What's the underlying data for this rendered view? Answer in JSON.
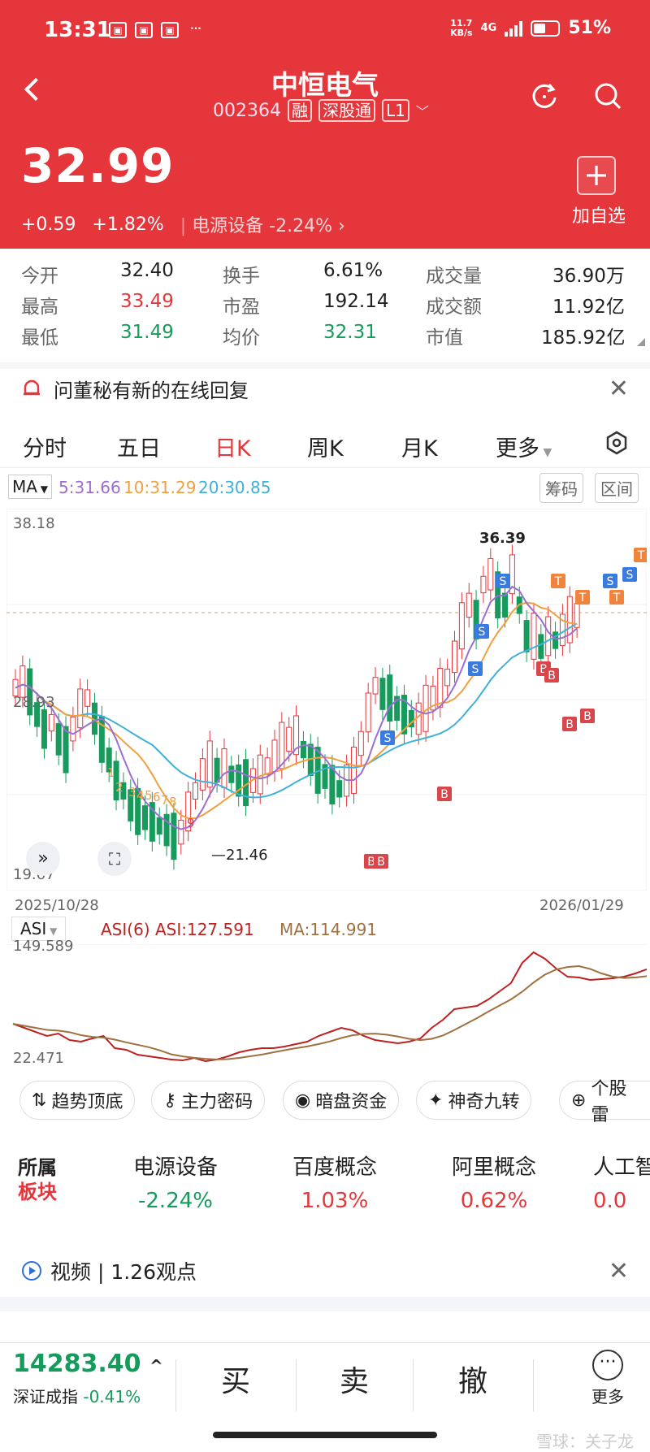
{
  "status": {
    "time": "13:31",
    "net_speed": "11.7",
    "net_unit": "KB/s",
    "net_type": "4G",
    "battery": "51%"
  },
  "header": {
    "title": "中恒电气",
    "code": "002364",
    "tags": [
      "融",
      "深股通",
      "L1"
    ],
    "price": "32.99",
    "change": "+0.59",
    "change_pct": "+1.82%",
    "sector": "电源设备",
    "sector_pct": "-2.24%",
    "add_label": "加自选"
  },
  "quote": {
    "open_label": "今开",
    "open": "32.40",
    "turnover_label": "换手",
    "turnover": "6.61%",
    "volume_label": "成交量",
    "volume": "36.90万",
    "high_label": "最高",
    "high": "33.49",
    "pe_label": "市盈",
    "pe": "192.14",
    "amount_label": "成交额",
    "amount": "11.92亿",
    "low_label": "最低",
    "low": "31.49",
    "avg_label": "均价",
    "avg": "32.31",
    "mcap_label": "市值",
    "mcap": "185.92亿"
  },
  "notice": {
    "text": "问董秘有新的在线回复"
  },
  "tabs": [
    "分时",
    "五日",
    "日K",
    "周K",
    "月K",
    "更多"
  ],
  "chart": {
    "ma_label": "MA",
    "ma5": "5:31.66",
    "ma10": "10:31.29",
    "ma20": "20:30.85",
    "btn1": "筹码",
    "btn2": "区间",
    "y_top": "38.18",
    "y_mid": "28.93",
    "y_bot": "19.67",
    "date_start": "2025/10/28",
    "date_end": "2026/01/29",
    "high_mark": "36.39",
    "low_mark": "21.46",
    "nine_labels": [
      "1",
      "2",
      "3",
      "4",
      "5",
      "6",
      "7",
      "8",
      "9"
    ],
    "signal_s": "S",
    "signal_b": "B",
    "signal_t": "T"
  },
  "asi": {
    "label": "ASI",
    "params": "ASI(6) ASI:127.591",
    "ma": "MA:114.991",
    "y_top": "149.589",
    "y_bot": "22.471"
  },
  "chips": [
    "趋势顶底",
    "主力密码",
    "暗盘资金",
    "神奇九转",
    "个股雷"
  ],
  "sector": {
    "title1": "所属",
    "title2": "板块",
    "items": [
      {
        "name": "电源设备",
        "pct": "-2.24%"
      },
      {
        "name": "百度概念",
        "pct": "1.03%"
      },
      {
        "name": "阿里概念",
        "pct": "0.62%"
      },
      {
        "name": "人工智",
        "pct": "0.0"
      }
    ]
  },
  "video": {
    "text": "视频 | 1.26观点"
  },
  "bottom": {
    "index_value": "14283.40",
    "index_label": "深证成指",
    "index_pct": "-0.41%",
    "buy": "买",
    "sell": "卖",
    "cancel": "撤",
    "more": "更多"
  },
  "watermark": "雪球：关子龙",
  "colors": {
    "red": "#e5363b",
    "green": "#179b5d",
    "ma5": "#9b6fd1",
    "ma10": "#f0a040",
    "ma20": "#3fb1d9"
  }
}
